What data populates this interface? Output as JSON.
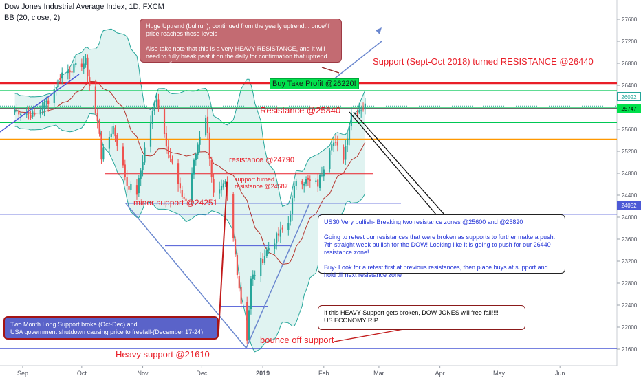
{
  "header": {
    "title": "Dow Jones Industrial Average Index, 1D, FXCM",
    "indicator": "BB (20, close, 2)"
  },
  "colors": {
    "up": "#26a69a",
    "down": "#ef5350",
    "bb_fill": "#e0f3f1",
    "bb_band": "#26a69a",
    "bb_basis": "#b5352e",
    "resistance_red": "#e91e28",
    "green_zone": "#00c853",
    "orange_line": "#ff9800",
    "blue_line": "#4c59d6",
    "trend_line": "#6b88cf"
  },
  "annotations": {
    "note_uptrend": "Huge Uptrend (bullrun), continued from the yearly uptrend... once/if price reaches these levels\n\nAlso take note that this is a very HEAVY RESISTANCE, and it will need to fully break past it on the daily for confirmation that uptrend may continue.",
    "note_bullish": "US30 Very bullish- Breaking two resistance zones @25600 and @25820\n\nGoing to retest our resistances that were broken as supports to further make a push. 7th straight week bullish for the DOW! Looking like it is going to push for our 26440 resistance zone!\n\nBuy- Look for a retest first at previous resistances, then place buys at support and hold till next resistance zone",
    "note_freefall": "If this HEAVY Support gets broken, DOW JONES will free fall!!!!\nUS ECONOMY RIP",
    "note_support_broke": "Two Month Long Support broke (Oct-Dec) and\nUSA government shutdown causing price to freefall-(December 17-24)",
    "support_resistance": "Support (Sept-Oct 2018) turned RESISTANCE @26440",
    "buy_tp": "Buy Take Profit @26220!",
    "resistance_25840": "Resistance @25840",
    "resistance_24790": "resistance @24790",
    "support_turned": "support turned\nresistance @24587",
    "minor_support": "minor support @24251",
    "bounce": "bounce off support",
    "heavy_support": "Heavy support @21610"
  },
  "price_labels": {
    "current": "26022",
    "level_25747": "25747",
    "level_24052": "24052"
  },
  "chart_data": {
    "type": "candlestick",
    "title": "Dow Jones Industrial Average Index, 1D, FXCM",
    "y_ticks": [
      21600,
      22000,
      22400,
      22800,
      23200,
      23600,
      24000,
      24400,
      24800,
      25200,
      25600,
      26000,
      26400,
      26800,
      27200,
      27600
    ],
    "x_ticks": [
      "Sep",
      "Oct",
      "Nov",
      "Dec",
      "2019",
      "Feb",
      "Mar",
      "Apr",
      "May",
      "Jun"
    ],
    "ylim": [
      21380,
      27750
    ],
    "horizontal_levels": [
      {
        "label": "Support (Sept-Oct 2018) turned RESISTANCE @26440",
        "value": 26440
      },
      {
        "label": "Buy Take Profit @26220!",
        "value": 26220
      },
      {
        "label": "Resistance @25840",
        "value": 25840
      },
      {
        "label": "resistance @24790",
        "value": 24790
      },
      {
        "label": "support turned resistance @24587",
        "value": 24587
      },
      {
        "label": "minor support @24251",
        "value": 24251
      },
      {
        "label": "Heavy support @21610",
        "value": 21610
      }
    ],
    "series": [
      {
        "name": "",
        "waypoints": [
          [
            "2018-08-28",
            25950
          ],
          [
            "2018-09-07",
            25850
          ],
          [
            "2018-09-14",
            26120
          ],
          [
            "2018-09-21",
            26620
          ],
          [
            "2018-10-03",
            26820
          ],
          [
            "2018-10-05",
            26400
          ],
          [
            "2018-10-10",
            25550
          ],
          [
            "2018-10-11",
            25100
          ],
          [
            "2018-10-17",
            25650
          ],
          [
            "2018-10-24",
            24600
          ],
          [
            "2018-10-29",
            24450
          ],
          [
            "2018-11-02",
            25250
          ],
          [
            "2018-11-08",
            26200
          ],
          [
            "2018-11-13",
            25350
          ],
          [
            "2018-11-20",
            24450
          ],
          [
            "2018-11-23",
            24300
          ],
          [
            "2018-11-30",
            25500
          ],
          [
            "2018-12-03",
            25850
          ],
          [
            "2018-12-07",
            24400
          ],
          [
            "2018-12-10",
            24450
          ],
          [
            "2018-12-13",
            24600
          ],
          [
            "2018-12-17",
            23600
          ],
          [
            "2018-12-21",
            22450
          ],
          [
            "2018-12-24",
            21800
          ],
          [
            "2018-12-26",
            22850
          ],
          [
            "2019-01-04",
            23450
          ],
          [
            "2019-01-14",
            23900
          ],
          [
            "2019-01-18",
            24700
          ],
          [
            "2019-01-29",
            24600
          ],
          [
            "2019-02-05",
            25400
          ],
          [
            "2019-02-11",
            25100
          ],
          [
            "2019-02-15",
            25900
          ],
          [
            "2019-02-22",
            26020
          ]
        ]
      }
    ]
  }
}
